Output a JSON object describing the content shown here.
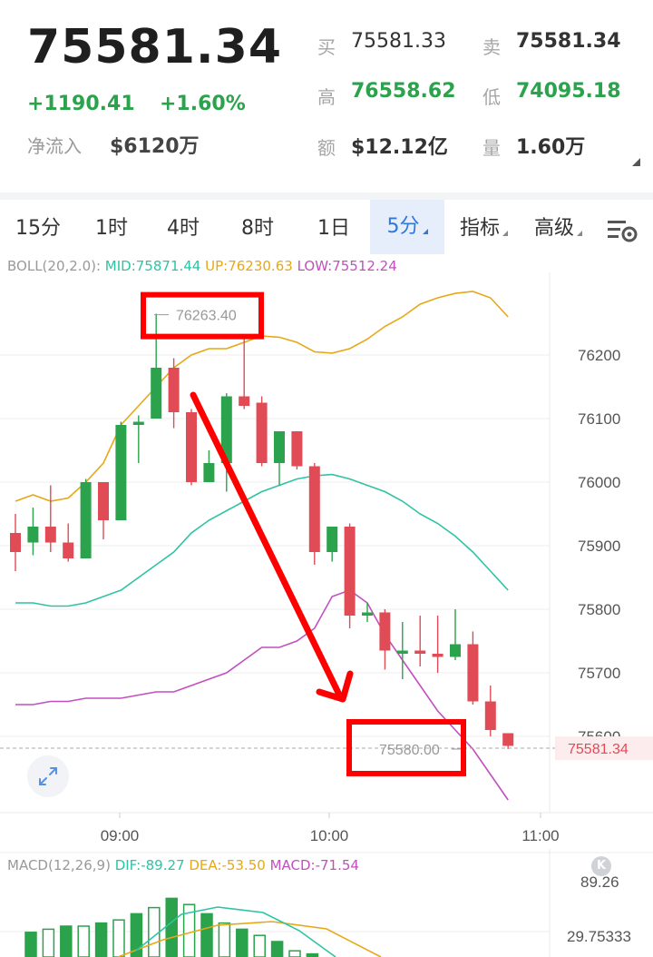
{
  "quote": {
    "last_price": "75581.34",
    "change_abs": "+1190.41",
    "change_pct": "+1.60%",
    "netflow_label": "净流入",
    "netflow_value": "$6120万",
    "bid_label": "买",
    "bid_value": "75581.33",
    "ask_label": "卖",
    "ask_value": "75581.34",
    "high_label": "高",
    "high_value": "76558.62",
    "low_label": "低",
    "low_value": "74095.18",
    "amount_label": "额",
    "amount_value": "$12.12亿",
    "volume_label": "量",
    "volume_value": "1.60万"
  },
  "tabs": [
    {
      "label": "15分"
    },
    {
      "label": "1时"
    },
    {
      "label": "4时"
    },
    {
      "label": "8时"
    },
    {
      "label": "1日"
    },
    {
      "label": "5分",
      "active": true
    },
    {
      "label": "指标"
    },
    {
      "label": "高级"
    }
  ],
  "icons": {
    "settings": "chart-settings-icon",
    "expand": "expand-icon"
  },
  "colors": {
    "up": "#2ba24c",
    "down": "#e04b55",
    "mid": "#2ec3a2",
    "upper": "#e6a817",
    "lower": "#c24fbf",
    "annotation": "#ff0000",
    "active_tab": "#2f78d8"
  },
  "boll": {
    "prefix": "BOLL(20,2.0): ",
    "mid": "MID:75871.44",
    "up": "UP:76230.63",
    "low": "LOW:75512.24"
  },
  "macd": {
    "prefix": "MACD(12,26,9) ",
    "dif": "DIF:-89.27",
    "dea": "DEA:-53.50",
    "macd": "MACD:-71.54",
    "axis_top": "89.26",
    "axis_mid": "29.75333",
    "badge": "K"
  },
  "chart_data": {
    "type": "candlestick",
    "interval": "5分",
    "x_ticks": [
      "09:00",
      "10:00",
      "11:00"
    ],
    "y_ticks": [
      76200,
      76100,
      76000,
      75900,
      75800,
      75700,
      75600
    ],
    "ylim": [
      75480,
      76330
    ],
    "last_price_label": "75581.34",
    "high_annotation": "76263.40",
    "low_annotation": "75580.00",
    "candles": [
      {
        "o": 75920,
        "h": 75950,
        "l": 75860,
        "c": 75890
      },
      {
        "o": 75905,
        "h": 75960,
        "l": 75885,
        "c": 75930
      },
      {
        "o": 75930,
        "h": 75995,
        "l": 75890,
        "c": 75905
      },
      {
        "o": 75905,
        "h": 75935,
        "l": 75875,
        "c": 75880
      },
      {
        "o": 75880,
        "h": 76005,
        "l": 75880,
        "c": 76000
      },
      {
        "o": 76000,
        "h": 76000,
        "l": 75910,
        "c": 75940
      },
      {
        "o": 75940,
        "h": 76095,
        "l": 75940,
        "c": 76090
      },
      {
        "o": 76090,
        "h": 76105,
        "l": 76030,
        "c": 76095
      },
      {
        "o": 76100,
        "h": 76265,
        "l": 76100,
        "c": 76180
      },
      {
        "o": 76180,
        "h": 76195,
        "l": 76085,
        "c": 76110
      },
      {
        "o": 76110,
        "h": 76115,
        "l": 75995,
        "c": 76000
      },
      {
        "o": 76000,
        "h": 76050,
        "l": 76000,
        "c": 76030
      },
      {
        "o": 76030,
        "h": 76140,
        "l": 75985,
        "c": 76135
      },
      {
        "o": 76135,
        "h": 76225,
        "l": 76115,
        "c": 76120
      },
      {
        "o": 76125,
        "h": 76135,
        "l": 76025,
        "c": 76030
      },
      {
        "o": 76030,
        "h": 76080,
        "l": 75995,
        "c": 76080
      },
      {
        "o": 76080,
        "h": 76080,
        "l": 76020,
        "c": 76025
      },
      {
        "o": 76025,
        "h": 76030,
        "l": 75870,
        "c": 75890
      },
      {
        "o": 75890,
        "h": 75930,
        "l": 75875,
        "c": 75930
      },
      {
        "o": 75930,
        "h": 75935,
        "l": 75770,
        "c": 75790
      },
      {
        "o": 75790,
        "h": 75810,
        "l": 75780,
        "c": 75795
      },
      {
        "o": 75795,
        "h": 75800,
        "l": 75705,
        "c": 75735
      },
      {
        "o": 75730,
        "h": 75780,
        "l": 75690,
        "c": 75735
      },
      {
        "o": 75735,
        "h": 75790,
        "l": 75710,
        "c": 75730
      },
      {
        "o": 75730,
        "h": 75790,
        "l": 75700,
        "c": 75725
      },
      {
        "o": 75725,
        "h": 75800,
        "l": 75720,
        "c": 75745
      },
      {
        "o": 75745,
        "h": 75765,
        "l": 75650,
        "c": 75655
      },
      {
        "o": 75655,
        "h": 75680,
        "l": 75600,
        "c": 75610
      },
      {
        "o": 75605,
        "h": 75605,
        "l": 75580,
        "c": 75585
      }
    ],
    "boll_up": [
      75970,
      75980,
      75970,
      75975,
      76000,
      76030,
      76090,
      76120,
      76150,
      76180,
      76200,
      76210,
      76210,
      76220,
      76230,
      76228,
      76220,
      76205,
      76203,
      76210,
      76225,
      76245,
      76260,
      76280,
      76290,
      76297,
      76300,
      76290,
      76260
    ],
    "boll_mid": [
      75810,
      75810,
      75805,
      75805,
      75810,
      75820,
      75830,
      75850,
      75870,
      75890,
      75920,
      75940,
      75955,
      75970,
      75985,
      75995,
      76005,
      76010,
      76012,
      76005,
      75995,
      75985,
      75970,
      75950,
      75935,
      75915,
      75890,
      75860,
      75830
    ],
    "boll_low": [
      75650,
      75650,
      75655,
      75655,
      75660,
      75660,
      75660,
      75665,
      75670,
      75670,
      75680,
      75690,
      75700,
      75720,
      75740,
      75740,
      75750,
      75770,
      75820,
      75830,
      75810,
      75760,
      75720,
      75680,
      75640,
      75610,
      75580,
      75540,
      75500
    ],
    "macd_hist": [
      0.4,
      0.45,
      0.5,
      0.5,
      0.55,
      0.6,
      0.7,
      0.8,
      0.95,
      0.85,
      0.7,
      0.55,
      0.45,
      0.35,
      0.25,
      0.1,
      0.05
    ]
  }
}
